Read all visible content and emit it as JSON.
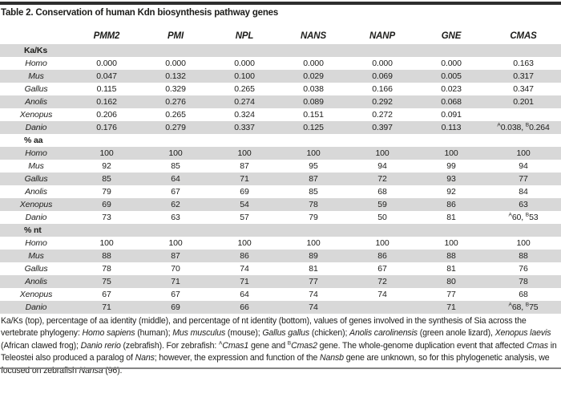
{
  "title": "Table 2. Conservation of human Kdn biosynthesis pathway genes",
  "table": {
    "row_label_header": "",
    "columns": [
      "PMM2",
      "PMI",
      "NPL",
      "NANS",
      "NANP",
      "GNE",
      "CMAS"
    ],
    "sections": [
      {
        "label": "Ka/Ks",
        "rows": [
          {
            "species": "Homo",
            "values": [
              "0.000",
              "0.000",
              "0.000",
              "0.000",
              "0.000",
              "0.000",
              "0.163"
            ]
          },
          {
            "species": "Mus",
            "values": [
              "0.047",
              "0.132",
              "0.100",
              "0.029",
              "0.069",
              "0.005",
              "0.317"
            ]
          },
          {
            "species": "Gallus",
            "values": [
              "0.115",
              "0.329",
              "0.265",
              "0.038",
              "0.166",
              "0.023",
              "0.347"
            ]
          },
          {
            "species": "Anolis",
            "values": [
              "0.162",
              "0.276",
              "0.274",
              "0.089",
              "0.292",
              "0.068",
              "0.201"
            ]
          },
          {
            "species": "Xenopus",
            "values": [
              "0.206",
              "0.265",
              "0.324",
              "0.151",
              "0.272",
              "0.091",
              ""
            ]
          },
          {
            "species": "Danio",
            "values": [
              "0.176",
              "0.279",
              "0.337",
              "0.125",
              "0.397",
              "0.113",
              "^A^0.038, ^B^0.264"
            ]
          }
        ]
      },
      {
        "label": "% aa",
        "rows": [
          {
            "species": "Homo",
            "values": [
              "100",
              "100",
              "100",
              "100",
              "100",
              "100",
              "100"
            ]
          },
          {
            "species": "Mus",
            "values": [
              "92",
              "85",
              "87",
              "95",
              "94",
              "99",
              "94"
            ]
          },
          {
            "species": "Gallus",
            "values": [
              "85",
              "64",
              "71",
              "87",
              "72",
              "93",
              "77"
            ]
          },
          {
            "species": "Anolis",
            "values": [
              "79",
              "67",
              "69",
              "85",
              "68",
              "92",
              "84"
            ]
          },
          {
            "species": "Xenopus",
            "values": [
              "69",
              "62",
              "54",
              "78",
              "59",
              "86",
              "63"
            ]
          },
          {
            "species": "Danio",
            "values": [
              "73",
              "63",
              "57",
              "79",
              "50",
              "81",
              "^A^60, ^B^53"
            ]
          }
        ]
      },
      {
        "label": "% nt",
        "rows": [
          {
            "species": "Homo",
            "values": [
              "100",
              "100",
              "100",
              "100",
              "100",
              "100",
              "100"
            ]
          },
          {
            "species": "Mus",
            "values": [
              "88",
              "87",
              "86",
              "89",
              "86",
              "88",
              "88"
            ]
          },
          {
            "species": "Gallus",
            "values": [
              "78",
              "70",
              "74",
              "81",
              "67",
              "81",
              "76"
            ]
          },
          {
            "species": "Anolis",
            "values": [
              "75",
              "71",
              "71",
              "77",
              "72",
              "80",
              "78"
            ]
          },
          {
            "species": "Xenopus",
            "values": [
              "67",
              "67",
              "64",
              "74",
              "74",
              "77",
              "68"
            ]
          },
          {
            "species": "Danio",
            "values": [
              "71",
              "69",
              "66",
              "74",
              "",
              "71",
              "^A^68, ^B^75"
            ]
          }
        ]
      }
    ]
  },
  "footnote": {
    "segments": [
      {
        "style": "normal",
        "text": "Ka/Ks (top), percentage of aa identity (middle), and percentage of nt identity (bottom), values of genes involved in the synthesis of Sia across the vertebrate phylogeny: "
      },
      {
        "style": "italic",
        "text": "Homo sapiens"
      },
      {
        "style": "normal",
        "text": " (human); "
      },
      {
        "style": "italic",
        "text": "Mus musculus"
      },
      {
        "style": "normal",
        "text": " (mouse); "
      },
      {
        "style": "italic",
        "text": "Gallus gallus"
      },
      {
        "style": "normal",
        "text": " (chicken); "
      },
      {
        "style": "italic",
        "text": "Anolis carolinensis"
      },
      {
        "style": "normal",
        "text": " (green anole lizard), "
      },
      {
        "style": "italic",
        "text": "Xenopus laevis"
      },
      {
        "style": "normal",
        "text": " (African clawed frog); "
      },
      {
        "style": "italic",
        "text": "Danio rerio"
      },
      {
        "style": "normal",
        "text": " (zebrafish). For zebrafish: "
      },
      {
        "style": "sup",
        "text": "A"
      },
      {
        "style": "italic",
        "text": "Cmas1"
      },
      {
        "style": "normal",
        "text": " gene and "
      },
      {
        "style": "sup",
        "text": "B"
      },
      {
        "style": "italic",
        "text": "Cmas2"
      },
      {
        "style": "normal",
        "text": " gene. The whole-genome duplication event that affected "
      },
      {
        "style": "italic",
        "text": "Cmas"
      },
      {
        "style": "normal",
        "text": " in Teleostei also produced a paralog of "
      },
      {
        "style": "italic",
        "text": "Nans"
      },
      {
        "style": "normal",
        "text": "; however, the expression and function of the "
      },
      {
        "style": "italic",
        "text": "Nansb"
      },
      {
        "style": "normal",
        "text": " gene are unknown, so for this phylogenetic analysis, we focused on zebrafish "
      },
      {
        "style": "italic",
        "text": "Nansa"
      },
      {
        "style": "normal",
        "text": " (96)."
      }
    ]
  },
  "colors": {
    "stripe_gray": "#d8d8d8",
    "top_rule": "#2e2e2e",
    "bottom_rule": "#858585",
    "text": "#1d1d1b"
  }
}
